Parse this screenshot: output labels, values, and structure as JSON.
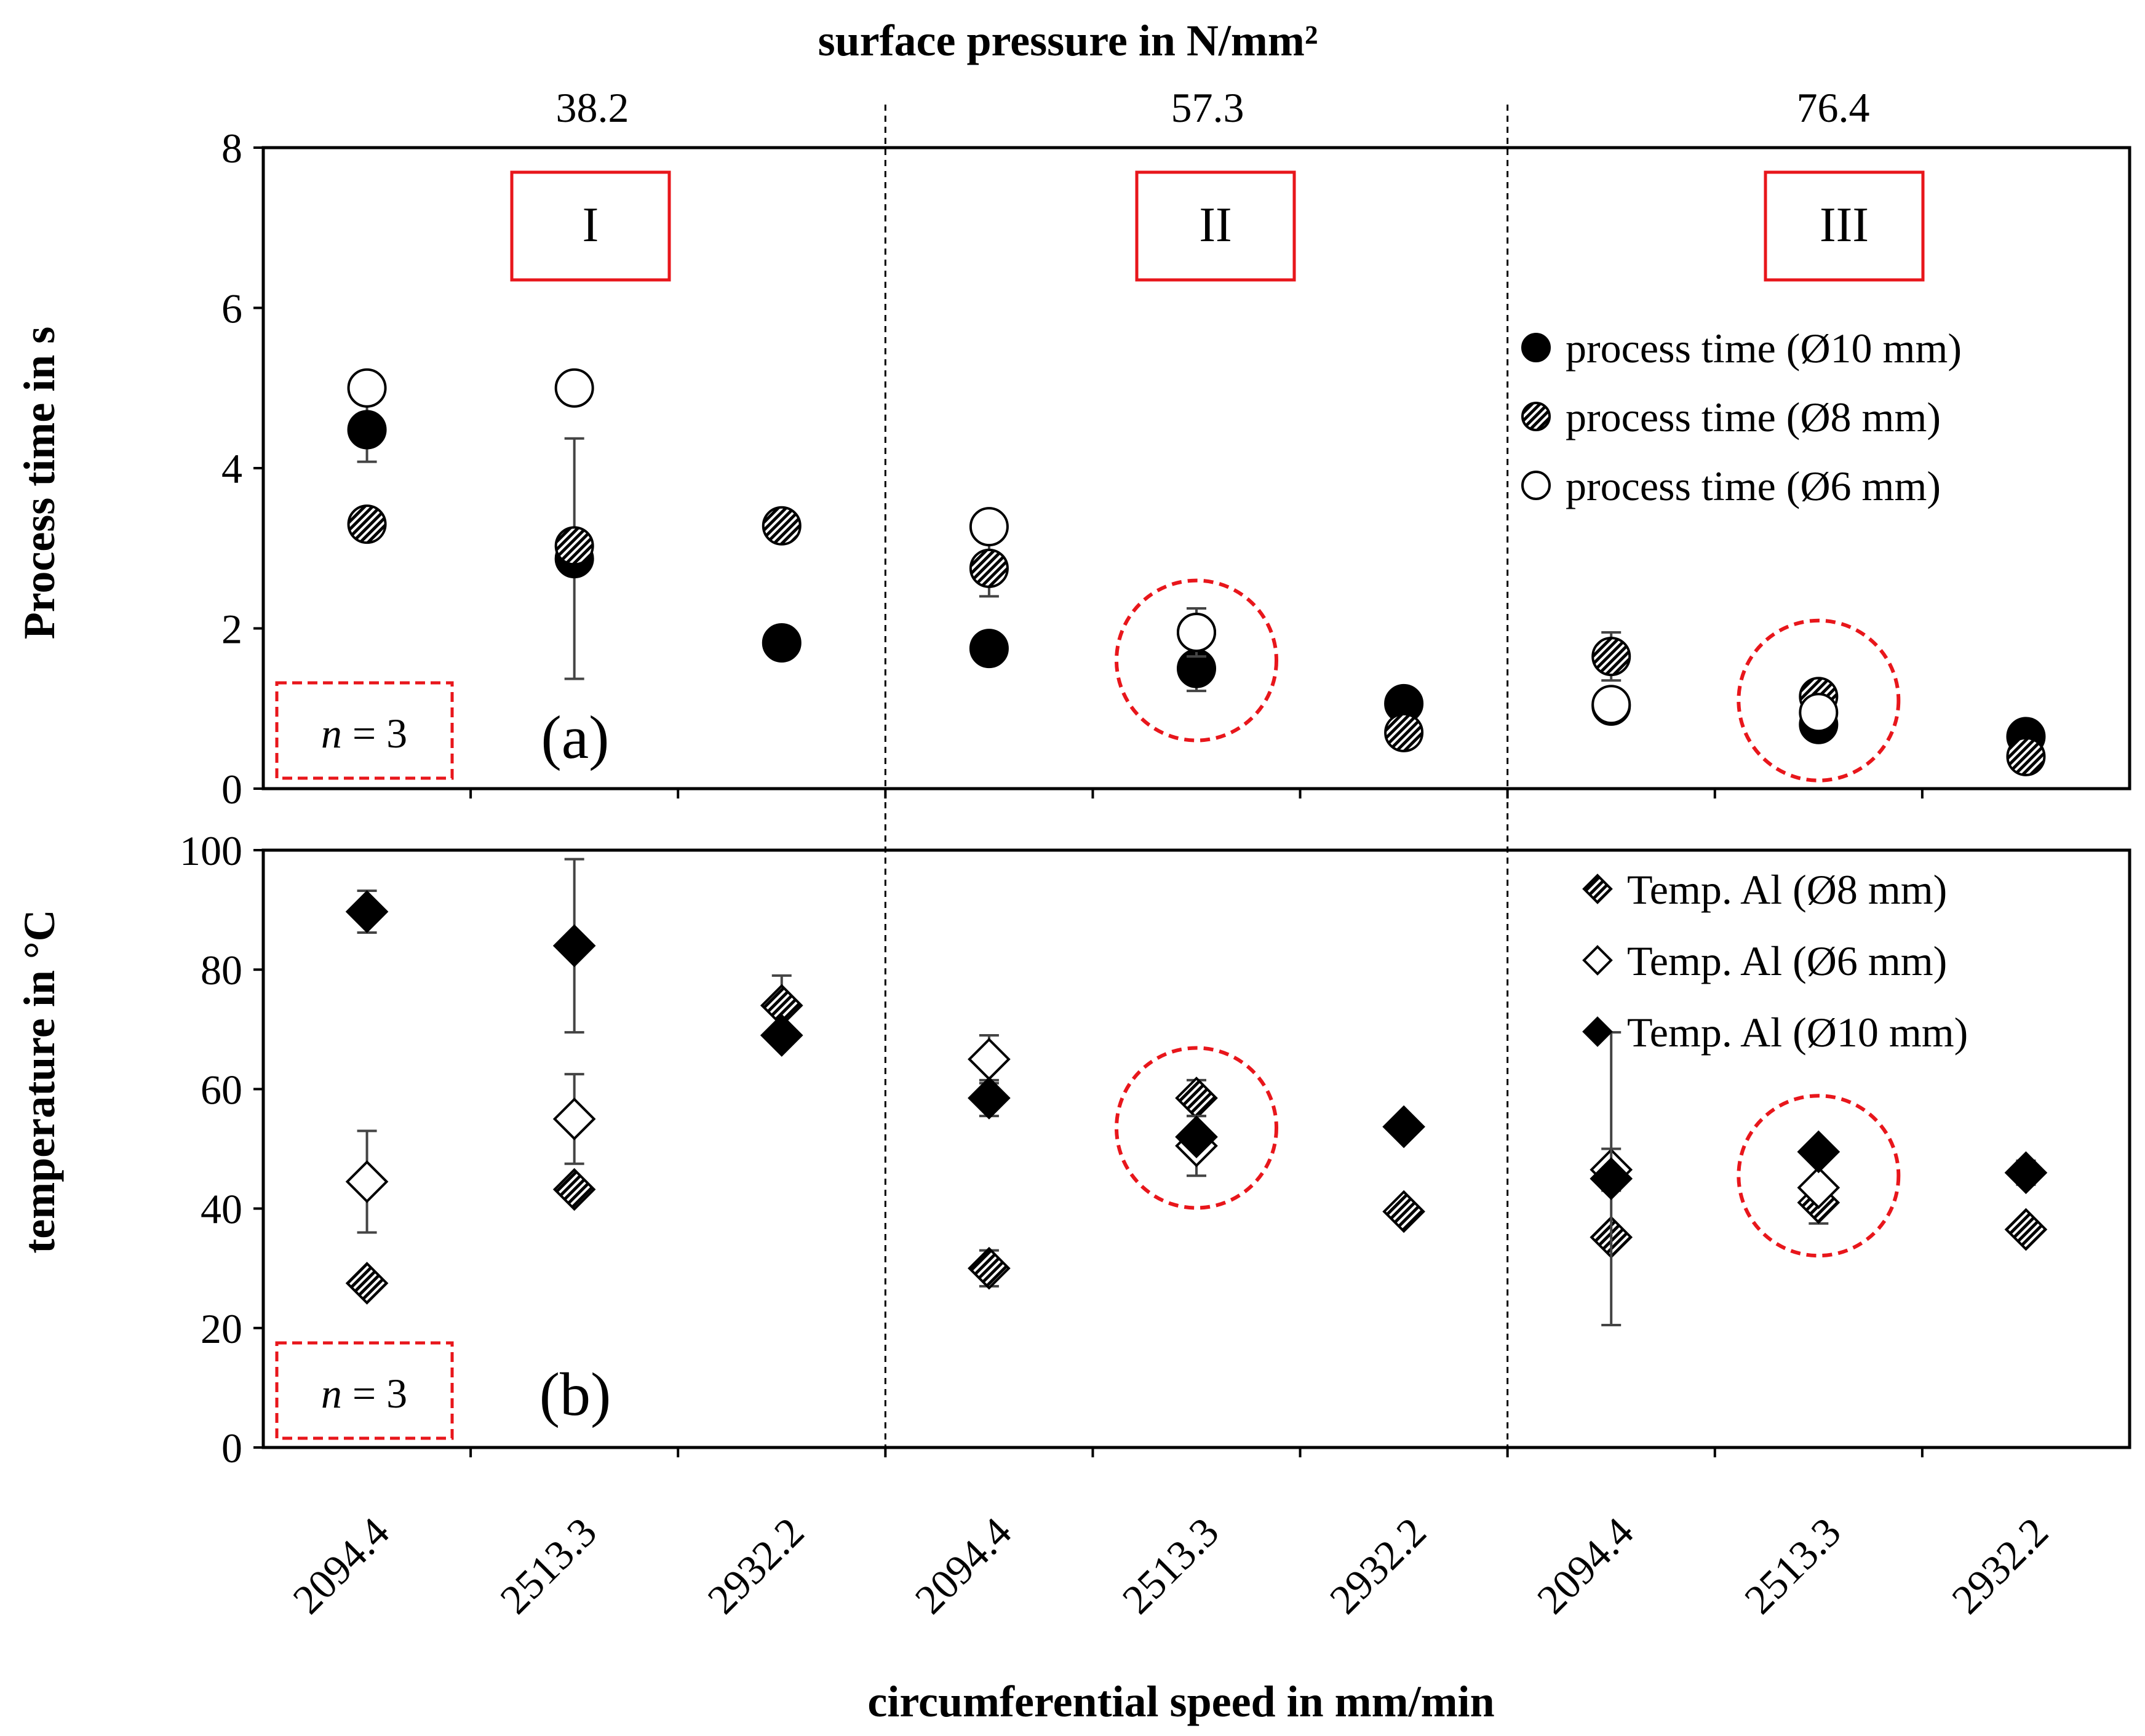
{
  "chart_data": [
    {
      "panel": "(a)",
      "type": "scatter",
      "top_title": "surface pressure in N/mm²",
      "pressure_labels": [
        "38.2",
        "57.3",
        "76.4"
      ],
      "regions": [
        "I",
        "II",
        "III"
      ],
      "sample_note": {
        "prefix": "n",
        "suffix": " = 3"
      },
      "ylabel": "Process time  in s",
      "ylim": [
        0,
        8
      ],
      "yticks": [
        "0",
        "2",
        "4",
        "6",
        "8"
      ],
      "categories": [
        "2094.4",
        "2513.3",
        "2932.2",
        "2094.4",
        "2513.3",
        "2932.2",
        "2094.4",
        "2513.3",
        "2932.2"
      ],
      "series": [
        {
          "name": "process time (Ø10 mm)",
          "marker": "filled-circle",
          "values": [
            4.48,
            2.87,
            1.82,
            1.75,
            1.5,
            1.06,
            1.03,
            0.8,
            0.65
          ],
          "errors": [
            0.4,
            1.5,
            0,
            0,
            0.28,
            0,
            0,
            0,
            0
          ]
        },
        {
          "name": "process time (Ø8 mm)",
          "marker": "hatched-circle",
          "values": [
            3.3,
            3.03,
            3.28,
            2.75,
            1.95,
            0.7,
            1.65,
            1.15,
            0.4
          ],
          "errors": [
            0,
            0,
            0,
            0.35,
            0.3,
            0,
            0.3,
            0,
            0
          ]
        },
        {
          "name": "process time (Ø6 mm)",
          "marker": "open-circle",
          "values": [
            5.0,
            5.0,
            null,
            3.27,
            1.95,
            null,
            1.05,
            0.95,
            null
          ],
          "errors": [
            0,
            0,
            0,
            0,
            0,
            0,
            0,
            0,
            0
          ]
        }
      ],
      "highlights": [
        {
          "category_index": 4,
          "value": 1.6
        },
        {
          "category_index": 7,
          "value": 1.1
        }
      ]
    },
    {
      "panel": "(b)",
      "type": "scatter",
      "sample_note": {
        "prefix": "n",
        "suffix": " = 3"
      },
      "ylabel": "temperature in °C",
      "ylim": [
        0,
        100
      ],
      "yticks": [
        "0",
        "20",
        "40",
        "60",
        "80",
        "100"
      ],
      "xlabel": "circumferential speed in mm/min",
      "categories": [
        "2094.4",
        "2513.3",
        "2932.2",
        "2094.4",
        "2513.3",
        "2932.2",
        "2094.4",
        "2513.3",
        "2932.2"
      ],
      "series": [
        {
          "name": "Temp. Al (Ø8 mm)",
          "marker": "hatched-diamond",
          "values": [
            27.5,
            43.2,
            74.0,
            30.0,
            58.5,
            39.5,
            35.2,
            41.0,
            36.5
          ],
          "errors": [
            0,
            0,
            5.0,
            3.0,
            3.0,
            0,
            0,
            3.5,
            0
          ]
        },
        {
          "name": "Temp. Al (Ø6 mm)",
          "marker": "open-diamond",
          "values": [
            44.5,
            55.0,
            null,
            65.0,
            50.5,
            null,
            46.5,
            43.5,
            null
          ],
          "errors": [
            8.5,
            7.5,
            0,
            4.0,
            5.0,
            0,
            3.5,
            0,
            0
          ]
        },
        {
          "name": "Temp. Al (Ø10 mm)",
          "marker": "filled-diamond",
          "values": [
            89.7,
            84.0,
            69.0,
            58.5,
            52.0,
            53.7,
            45.0,
            49.5,
            46.0
          ],
          "errors": [
            3.5,
            14.5,
            0,
            3.0,
            0,
            0,
            24.5,
            0,
            2.0
          ]
        }
      ],
      "highlights": [
        {
          "category_index": 4,
          "value": 53.5
        },
        {
          "category_index": 7,
          "value": 45.5
        }
      ]
    }
  ],
  "colors": {
    "axis": "#000000",
    "highlight": "#e8161b",
    "marker": "#000000",
    "errorbar": "#444444"
  }
}
